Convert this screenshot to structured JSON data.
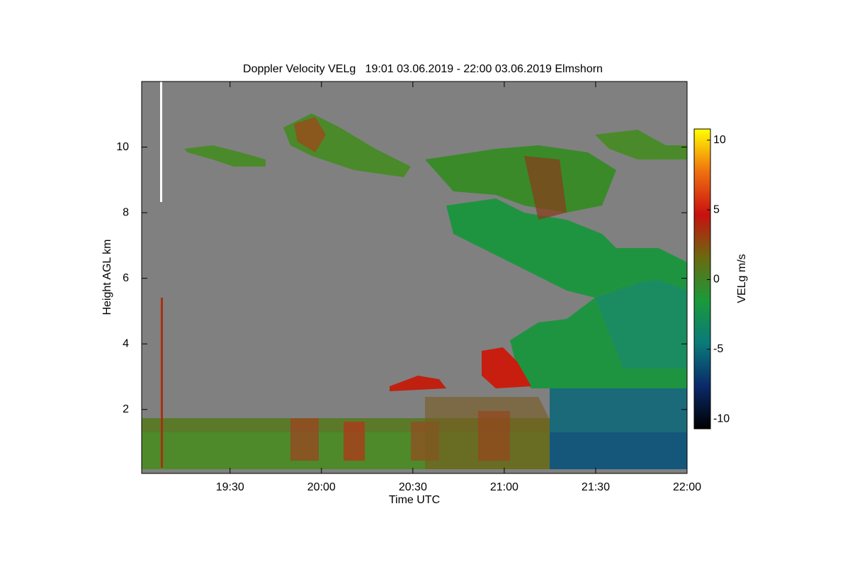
{
  "chart_data": {
    "type": "heatmap",
    "title": "Doppler Velocity VELg   19:01 03.06.2019 - 22:00 03.06.2019 Elmshorn",
    "x_label": "Time UTC",
    "y_label": "Height AGL km",
    "colorbar_label": "VELg m/s",
    "xlim": [
      1141,
      1320
    ],
    "xticks": [
      {
        "value": 1170,
        "label": "19:30"
      },
      {
        "value": 1200,
        "label": "20:00"
      },
      {
        "value": 1230,
        "label": "20:30"
      },
      {
        "value": 1260,
        "label": "21:00"
      },
      {
        "value": 1290,
        "label": "21:30"
      },
      {
        "value": 1320,
        "label": "22:00"
      }
    ],
    "ylim": [
      0.05,
      12
    ],
    "yticks": [
      2,
      4,
      6,
      8,
      10
    ],
    "clim": [
      -10.7,
      10.8
    ],
    "cticks": [
      -10,
      -5,
      0,
      5,
      10
    ],
    "colormap": [
      "#000000",
      "#0a2a6a",
      "#0a7a7a",
      "#1a9a3a",
      "#6a6a10",
      "#c81010",
      "#f07010",
      "#ffff00"
    ],
    "background": "#808080"
  }
}
